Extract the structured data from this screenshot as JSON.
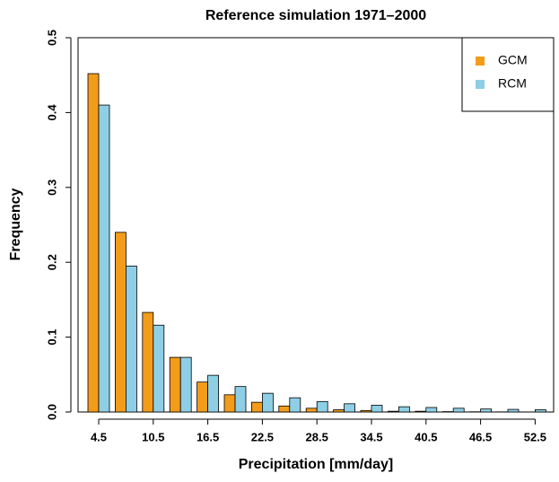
{
  "chart_data": {
    "type": "bar",
    "title": "Reference simulation 1971–2000",
    "x_label": "Precipitation [mm/day]",
    "y_label": "Frequency",
    "categories": [
      "4.5",
      null,
      "10.5",
      null,
      "16.5",
      null,
      "22.5",
      null,
      "28.5",
      null,
      "34.5",
      null,
      "40.5",
      null,
      "46.5",
      null,
      "52.5"
    ],
    "series": [
      {
        "name": "GCM",
        "color": "#f39c1a",
        "values": [
          0.452,
          0.24,
          0.133,
          0.073,
          0.04,
          0.023,
          0.013,
          0.008,
          0.005,
          0.003,
          0.002,
          0.001,
          0.001,
          0.0005,
          0.0003,
          0.0002,
          0.0001
        ]
      },
      {
        "name": "RCM",
        "color": "#8ecfe6",
        "values": [
          0.41,
          0.195,
          0.116,
          0.073,
          0.049,
          0.034,
          0.025,
          0.019,
          0.014,
          0.011,
          0.009,
          0.007,
          0.006,
          0.005,
          0.004,
          0.0035,
          0.003
        ]
      }
    ],
    "ylim": [
      0,
      0.5
    ],
    "yticks": [
      {
        "value": 0,
        "label": "0.0"
      },
      0.1,
      0.2,
      0.3,
      0.4,
      0.5
    ],
    "legend": "top-right"
  }
}
